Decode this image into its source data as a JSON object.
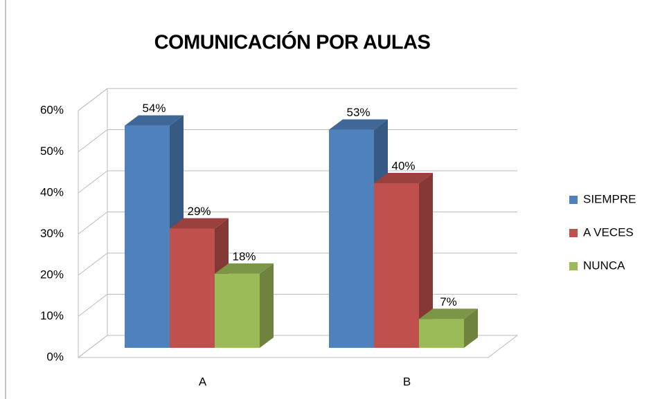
{
  "chart_data": {
    "type": "bar3d",
    "title": "COMUNICACIÓN POR AULAS",
    "categories": [
      "A",
      "B"
    ],
    "series": [
      {
        "name": "SIEMPRE",
        "color": "#4f81bd",
        "values": [
          54,
          53
        ],
        "value_labels": [
          "54%",
          "53%"
        ]
      },
      {
        "name": "A VECES",
        "color": "#c0504d",
        "values": [
          29,
          40
        ],
        "value_labels": [
          "29%",
          "40%"
        ]
      },
      {
        "name": "NUNCA",
        "color": "#9bbb59",
        "values": [
          18,
          7
        ],
        "value_labels": [
          "18%",
          "7%"
        ]
      }
    ],
    "ylim": [
      0,
      60
    ],
    "yticks": [
      {
        "value": 0,
        "label": "0%"
      },
      {
        "value": 10,
        "label": "10%"
      },
      {
        "value": 20,
        "label": "20%"
      },
      {
        "value": 30,
        "label": "30%"
      },
      {
        "value": 40,
        "label": "40%"
      },
      {
        "value": 50,
        "label": "50%"
      },
      {
        "value": 60,
        "label": "60%"
      }
    ],
    "grid": true,
    "legend": "right"
  }
}
